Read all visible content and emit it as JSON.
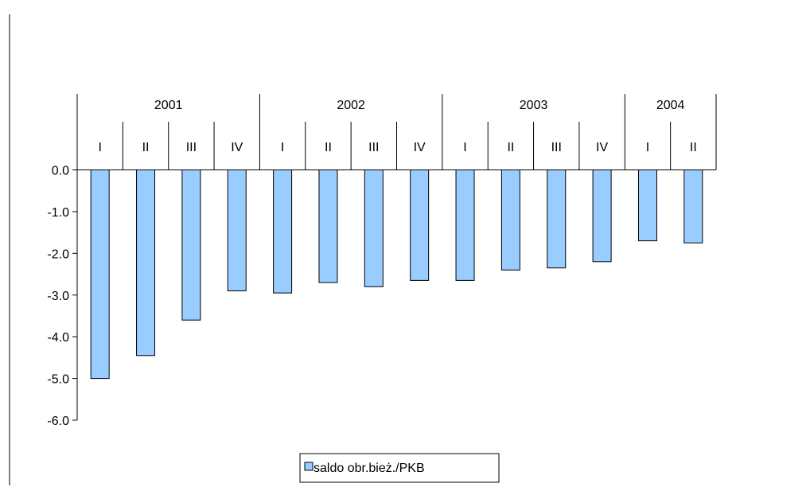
{
  "chart_data": {
    "type": "bar",
    "title": "",
    "years": [
      "2001",
      "2002",
      "2003",
      "2004"
    ],
    "quarters_per_year": [
      4,
      4,
      4,
      2
    ],
    "categories": [
      "I",
      "II",
      "III",
      "IV",
      "I",
      "II",
      "III",
      "IV",
      "I",
      "II",
      "III",
      "IV",
      "I",
      "II"
    ],
    "series": [
      {
        "name": "saldo obr.bież./PKB",
        "values": [
          -5.0,
          -4.45,
          -3.6,
          -2.9,
          -2.95,
          -2.7,
          -2.8,
          -2.65,
          -2.65,
          -2.4,
          -2.35,
          -2.2,
          -1.7,
          -1.75
        ],
        "color": "#99ccff"
      }
    ],
    "ylim": [
      -6.0,
      0.0
    ],
    "yticks": [
      "0.0",
      "-1.0",
      "-2.0",
      "-3.0",
      "-4.0",
      "-5.0",
      "-6.0"
    ],
    "grid": false,
    "legend_position": "bottom"
  }
}
